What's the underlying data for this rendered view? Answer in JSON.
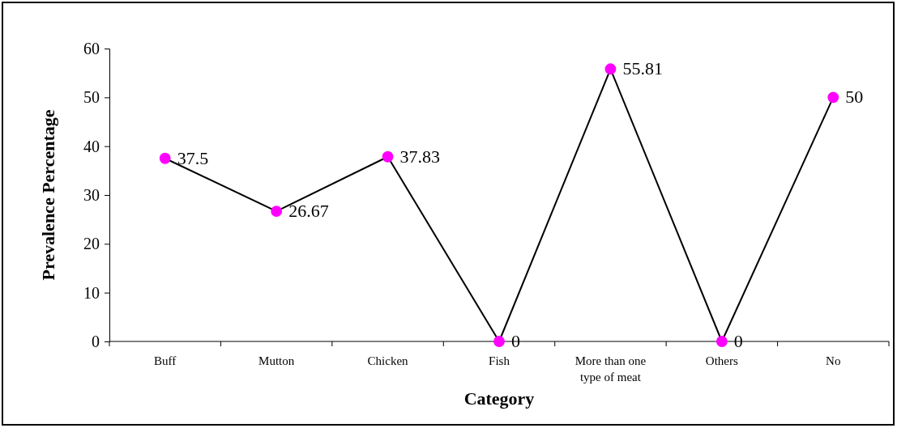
{
  "chart_data": {
    "type": "line",
    "xlabel": "Category",
    "ylabel": "Prevalence Percentage",
    "categories": [
      "Buff",
      "Mutton",
      "Chicken",
      "Fish",
      "More than one type of meat",
      "Others",
      "No"
    ],
    "series": [
      {
        "color": "#ff00ff",
        "values": [
          37.5,
          26.67,
          37.83,
          0,
          55.81,
          0,
          50
        ]
      }
    ],
    "ylim": [
      0,
      60
    ],
    "yticks": [
      0,
      10,
      20,
      30,
      40,
      50,
      60
    ],
    "grid": false,
    "marker": "circle",
    "line_style": "solid",
    "data_labels": true
  }
}
